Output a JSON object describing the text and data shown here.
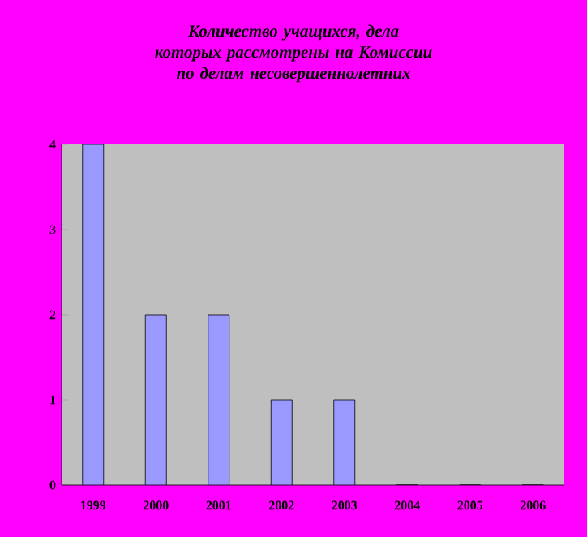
{
  "chart_data": {
    "type": "bar",
    "title": "Количество учащихся, дела которых рассмотрены на Комиссии по делам несовершеннолетних",
    "categories": [
      "1999",
      "2000",
      "2001",
      "2002",
      "2003",
      "2004",
      "2005",
      "2006"
    ],
    "values": [
      4,
      2,
      2,
      1,
      1,
      0,
      0,
      0
    ],
    "color": "#9999ff",
    "ylim": [
      0,
      4
    ],
    "yticks": [
      0,
      1,
      2,
      3,
      4
    ],
    "grid": false
  }
}
